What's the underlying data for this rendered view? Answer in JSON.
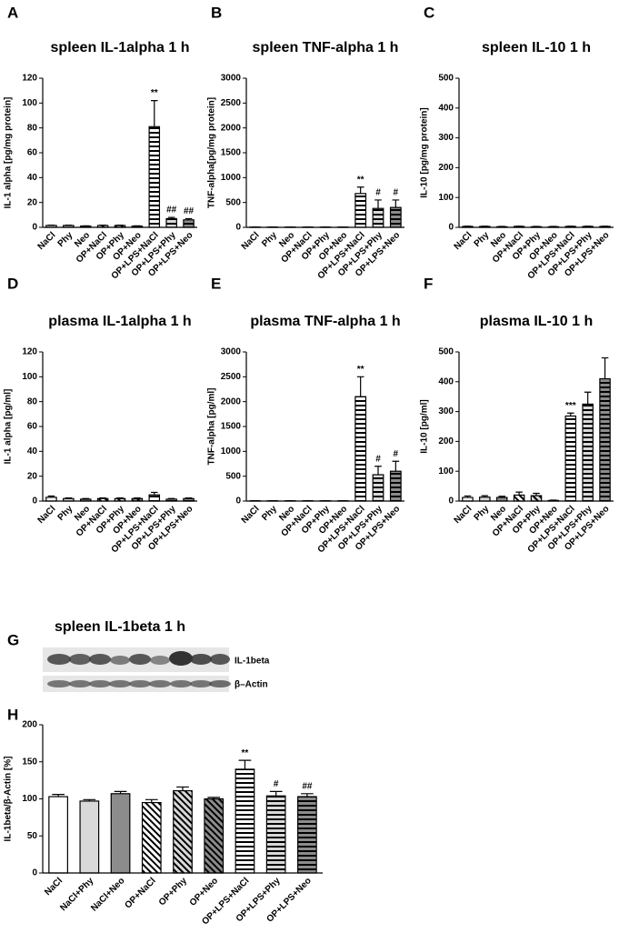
{
  "chart_data": [
    {
      "type": "bar",
      "panel": "A",
      "title": "spleen IL-1alpha 1 h",
      "ylabel": "IL-1 alpha [pg/mg protein]",
      "categories": [
        "NaCl",
        "Phy",
        "Neo",
        "OP+NaCl",
        "OP+Phy",
        "OP+Neo",
        "OP+LPS+NaCl",
        "OP+LPS+Phy",
        "OP+LPS+Neo"
      ],
      "values": [
        1.5,
        1.5,
        1,
        1.5,
        1.5,
        1,
        81,
        7,
        6
      ],
      "errors": [
        0.3,
        0.3,
        0.2,
        0.3,
        0.3,
        0.2,
        21,
        1,
        1
      ],
      "annotations": [
        null,
        null,
        null,
        null,
        null,
        null,
        "**",
        "##",
        "##"
      ],
      "ylim": [
        0,
        120
      ],
      "yticks": [
        0,
        20,
        40,
        60,
        80,
        100,
        120
      ],
      "fills": [
        "#ffffff",
        "#d9d9d9",
        "#8c8c8c",
        "#ffffff",
        "#d9d9d9",
        "#8c8c8c",
        "#ffffff",
        "#d9d9d9",
        "#8c8c8c"
      ],
      "hatches": [
        "none",
        "none",
        "none",
        "diagonal",
        "diagonal",
        "diagonal",
        "horizontal",
        "horizontal",
        "horizontal"
      ]
    },
    {
      "type": "bar",
      "panel": "B",
      "title": "spleen TNF-alpha 1 h",
      "ylabel": "TNF-alpha[pg/mg protein]",
      "categories": [
        "NaCl",
        "Phy",
        "Neo",
        "OP+NaCl",
        "OP+Phy",
        "OP+Neo",
        "OP+LPS+NaCl",
        "OP+LPS+Phy",
        "OP+LPS+Neo"
      ],
      "values": [
        5,
        5,
        5,
        5,
        5,
        5,
        680,
        380,
        400
      ],
      "errors": [
        2,
        2,
        2,
        2,
        2,
        2,
        130,
        170,
        150
      ],
      "annotations": [
        null,
        null,
        null,
        null,
        null,
        null,
        "**",
        "#",
        "#"
      ],
      "ylim": [
        0,
        3000
      ],
      "yticks": [
        0,
        500,
        1000,
        1500,
        2000,
        2500,
        3000
      ],
      "fills": [
        "#ffffff",
        "#d9d9d9",
        "#8c8c8c",
        "#ffffff",
        "#d9d9d9",
        "#8c8c8c",
        "#ffffff",
        "#d9d9d9",
        "#8c8c8c"
      ],
      "hatches": [
        "none",
        "none",
        "none",
        "diagonal",
        "diagonal",
        "diagonal",
        "horizontal",
        "horizontal",
        "horizontal"
      ]
    },
    {
      "type": "bar",
      "panel": "C",
      "title": "spleen IL-10 1 h",
      "ylabel": "IL-10 [pg/mg protein]",
      "categories": [
        "NaCl",
        "Phy",
        "Neo",
        "OP+NaCl",
        "OP+Phy",
        "OP+Neo",
        "OP+LPS+NaCl",
        "OP+LPS+Phy",
        "OP+LPS+Neo"
      ],
      "values": [
        3,
        3,
        2,
        3,
        2,
        2,
        3,
        3,
        3
      ],
      "errors": [
        1,
        1,
        1,
        1,
        1,
        1,
        1,
        1,
        1
      ],
      "annotations": [
        null,
        null,
        null,
        null,
        null,
        null,
        null,
        null,
        null
      ],
      "ylim": [
        0,
        500
      ],
      "yticks": [
        0,
        100,
        200,
        300,
        400,
        500
      ],
      "fills": [
        "#ffffff",
        "#d9d9d9",
        "#8c8c8c",
        "#ffffff",
        "#d9d9d9",
        "#8c8c8c",
        "#ffffff",
        "#d9d9d9",
        "#8c8c8c"
      ],
      "hatches": [
        "none",
        "none",
        "none",
        "diagonal",
        "diagonal",
        "diagonal",
        "horizontal",
        "horizontal",
        "horizontal"
      ]
    },
    {
      "type": "bar",
      "panel": "D",
      "title": "plasma IL-1alpha 1 h",
      "ylabel": "IL-1 alpha [pg/ml]",
      "categories": [
        "NaCl",
        "Phy",
        "Neo",
        "OP+NaCl",
        "OP+Phy",
        "OP+Neo",
        "OP+LPS+NaCl",
        "OP+LPS+Phy",
        "OP+LPS+Neo"
      ],
      "values": [
        3,
        2,
        1.5,
        2,
        2,
        2,
        5,
        1.5,
        2
      ],
      "errors": [
        1,
        0.5,
        0.5,
        0.5,
        0.5,
        0.5,
        2,
        0.5,
        0.5
      ],
      "annotations": [
        null,
        null,
        null,
        null,
        null,
        null,
        null,
        null,
        null
      ],
      "ylim": [
        0,
        120
      ],
      "yticks": [
        0,
        20,
        40,
        60,
        80,
        100,
        120
      ],
      "fills": [
        "#ffffff",
        "#d9d9d9",
        "#8c8c8c",
        "#ffffff",
        "#d9d9d9",
        "#8c8c8c",
        "#ffffff",
        "#d9d9d9",
        "#8c8c8c"
      ],
      "hatches": [
        "none",
        "none",
        "none",
        "diagonal",
        "diagonal",
        "diagonal",
        "horizontal",
        "horizontal",
        "horizontal"
      ]
    },
    {
      "type": "bar",
      "panel": "E",
      "title": "plasma TNF-alpha 1 h",
      "ylabel": "TNF-alpha [pg/ml]",
      "categories": [
        "NaCl",
        "Phy",
        "Neo",
        "OP+NaCl",
        "OP+Phy",
        "OP+Neo",
        "OP+LPS+NaCl",
        "OP+LPS+Phy",
        "OP+LPS+Neo"
      ],
      "values": [
        5,
        5,
        5,
        5,
        5,
        5,
        2100,
        530,
        600
      ],
      "errors": [
        2,
        2,
        2,
        2,
        2,
        2,
        400,
        170,
        200
      ],
      "annotations": [
        null,
        null,
        null,
        null,
        null,
        null,
        "**",
        "#",
        "#"
      ],
      "ylim": [
        0,
        3000
      ],
      "yticks": [
        0,
        500,
        1000,
        1500,
        2000,
        2500,
        3000
      ],
      "fills": [
        "#ffffff",
        "#d9d9d9",
        "#8c8c8c",
        "#ffffff",
        "#d9d9d9",
        "#8c8c8c",
        "#ffffff",
        "#d9d9d9",
        "#8c8c8c"
      ],
      "hatches": [
        "none",
        "none",
        "none",
        "diagonal",
        "diagonal",
        "diagonal",
        "horizontal",
        "horizontal",
        "horizontal"
      ]
    },
    {
      "type": "bar",
      "panel": "F",
      "title": "plasma IL-10 1 h",
      "ylabel": "IL-10 [pg/ml]",
      "categories": [
        "NaCl",
        "Phy",
        "Neo",
        "OP+NaCl",
        "OP+Phy",
        "OP+Neo",
        "OP+LPS+NaCl",
        "OP+LPS+Phy",
        "OP+LPS+Neo"
      ],
      "values": [
        12,
        13,
        12,
        20,
        18,
        2,
        285,
        325,
        410
      ],
      "errors": [
        5,
        5,
        4,
        10,
        8,
        1,
        10,
        40,
        70
      ],
      "annotations": [
        null,
        null,
        null,
        null,
        null,
        null,
        "***",
        null,
        null
      ],
      "ylim": [
        0,
        500
      ],
      "yticks": [
        0,
        100,
        200,
        300,
        400,
        500
      ],
      "fills": [
        "#ffffff",
        "#d9d9d9",
        "#8c8c8c",
        "#ffffff",
        "#d9d9d9",
        "#8c8c8c",
        "#ffffff",
        "#d9d9d9",
        "#8c8c8c"
      ],
      "hatches": [
        "none",
        "none",
        "none",
        "diagonal",
        "diagonal",
        "diagonal",
        "horizontal",
        "horizontal",
        "horizontal"
      ]
    },
    {
      "type": "bar",
      "panel": "H",
      "ylabel": "IL-1beta/β-Actin [%]",
      "categories": [
        "NaCl",
        "NaCl+Phy",
        "NaCl+Neo",
        "OP+NaCl",
        "OP+Phy",
        "OP+Neo",
        "OP+LPS+NaCl",
        "OP+LPS+Phy",
        "OP+LPS+Neo"
      ],
      "values": [
        103,
        97,
        107,
        95,
        111,
        100,
        140,
        104,
        103
      ],
      "errors": [
        3,
        2,
        3,
        4,
        5,
        2,
        12,
        6,
        4
      ],
      "annotations": [
        null,
        null,
        null,
        null,
        null,
        null,
        "**",
        "#",
        "##"
      ],
      "ylim": [
        0,
        200
      ],
      "yticks": [
        0,
        50,
        100,
        150,
        200
      ],
      "fills": [
        "#ffffff",
        "#d9d9d9",
        "#8c8c8c",
        "#ffffff",
        "#d9d9d9",
        "#8c8c8c",
        "#ffffff",
        "#d9d9d9",
        "#8c8c8c"
      ],
      "hatches": [
        "none",
        "none",
        "none",
        "diagonal",
        "diagonal",
        "diagonal",
        "horizontal",
        "horizontal",
        "horizontal"
      ]
    }
  ],
  "blot": {
    "panel": "G",
    "title": "spleen IL-1beta 1 h",
    "rows": [
      "IL-1beta",
      "β–Actin"
    ]
  }
}
